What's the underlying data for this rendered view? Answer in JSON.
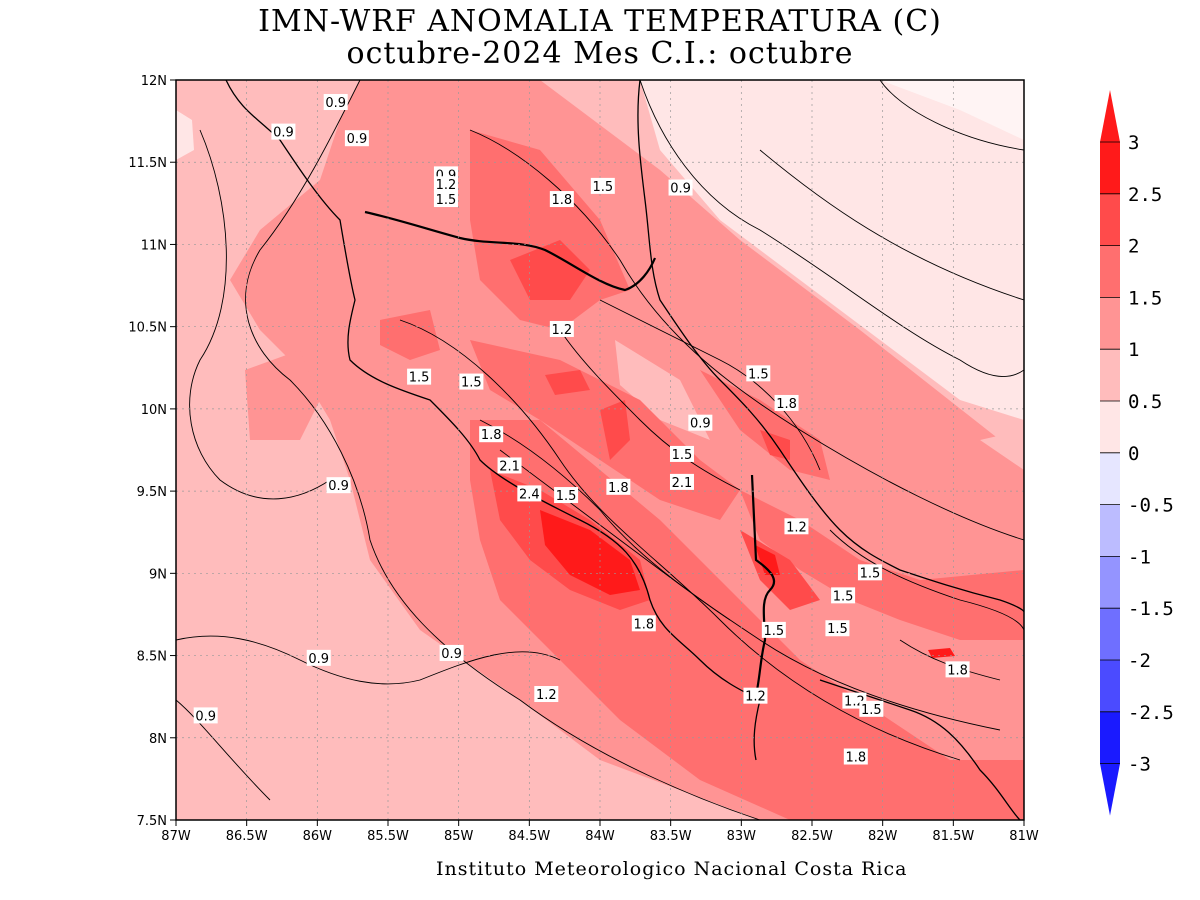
{
  "title": {
    "line1": "IMN-WRF  ANOMALIA TEMPERATURA (C)",
    "line2": "octubre-2024 Mes C.I.: octubre"
  },
  "credit": "Instituto Meteorologico Nacional Costa Rica",
  "axes": {
    "lon_ticks": [
      "87W",
      "86.5W",
      "86W",
      "85.5W",
      "85W",
      "84.5W",
      "84W",
      "83.5W",
      "83W",
      "82.5W",
      "82W",
      "81.5W",
      "81W"
    ],
    "lat_ticks": [
      "12N",
      "11.5N",
      "11N",
      "10.5N",
      "10N",
      "9.5N",
      "9N",
      "8.5N",
      "8N",
      "7.5N"
    ],
    "lon_range": [
      -87,
      -81
    ],
    "lat_range": [
      7.5,
      12
    ]
  },
  "colorbar": {
    "labels": [
      "3",
      "2.5",
      "2",
      "1.5",
      "1",
      "0.5",
      "0",
      "-0.5",
      "-1",
      "-1.5",
      "-2",
      "-2.5",
      "-3"
    ],
    "colors": [
      "#ff1a1a",
      "#ff4b4b",
      "#ff6f6f",
      "#ff9494",
      "#ffbcbc",
      "#ffe6e6",
      "#ffffff",
      "#e6e6ff",
      "#bcbcff",
      "#9494ff",
      "#6f6fff",
      "#4b4bff",
      "#1a1aff"
    ]
  },
  "contour_labels": [
    {
      "text": "0.9",
      "lon": -85.87,
      "lat": 11.86
    },
    {
      "text": "0.9",
      "lon": -86.24,
      "lat": 11.68
    },
    {
      "text": "0.9",
      "lon": -85.72,
      "lat": 11.64
    },
    {
      "text": "0.9",
      "lon": -85.09,
      "lat": 11.42
    },
    {
      "text": "1.2",
      "lon": -85.09,
      "lat": 11.36
    },
    {
      "text": "1.5",
      "lon": -85.09,
      "lat": 11.27
    },
    {
      "text": "1.8",
      "lon": -84.27,
      "lat": 11.27
    },
    {
      "text": "1.5",
      "lon": -83.98,
      "lat": 11.35
    },
    {
      "text": "0.9",
      "lon": -83.43,
      "lat": 11.34
    },
    {
      "text": "1.2",
      "lon": -84.27,
      "lat": 10.48
    },
    {
      "text": "1.5",
      "lon": -85.28,
      "lat": 10.19
    },
    {
      "text": "1.5",
      "lon": -84.91,
      "lat": 10.16
    },
    {
      "text": "1.5",
      "lon": -82.88,
      "lat": 10.21
    },
    {
      "text": "1.8",
      "lon": -82.68,
      "lat": 10.03
    },
    {
      "text": "0.9",
      "lon": -83.29,
      "lat": 9.91
    },
    {
      "text": "1.8",
      "lon": -84.77,
      "lat": 9.84
    },
    {
      "text": "1.5",
      "lon": -83.42,
      "lat": 9.72
    },
    {
      "text": "2.1",
      "lon": -84.64,
      "lat": 9.65
    },
    {
      "text": "2.1",
      "lon": -83.42,
      "lat": 9.55
    },
    {
      "text": "1.8",
      "lon": -83.87,
      "lat": 9.52
    },
    {
      "text": "2.4",
      "lon": -84.5,
      "lat": 9.48
    },
    {
      "text": "1.5",
      "lon": -84.24,
      "lat": 9.47
    },
    {
      "text": "0.9",
      "lon": -85.85,
      "lat": 9.53
    },
    {
      "text": "1.2",
      "lon": -82.61,
      "lat": 9.28
    },
    {
      "text": "1.5",
      "lon": -82.09,
      "lat": 9.0
    },
    {
      "text": "1.5",
      "lon": -82.28,
      "lat": 8.86
    },
    {
      "text": "1.8",
      "lon": -83.69,
      "lat": 8.69
    },
    {
      "text": "1.5",
      "lon": -82.77,
      "lat": 8.65
    },
    {
      "text": "1.5",
      "lon": -82.32,
      "lat": 8.66
    },
    {
      "text": "0.9",
      "lon": -85.05,
      "lat": 8.51
    },
    {
      "text": "0.9",
      "lon": -85.99,
      "lat": 8.48
    },
    {
      "text": "1.8",
      "lon": -81.47,
      "lat": 8.41
    },
    {
      "text": "1.2",
      "lon": -84.38,
      "lat": 8.26
    },
    {
      "text": "1.2",
      "lon": -82.9,
      "lat": 8.25
    },
    {
      "text": "1.2",
      "lon": -82.2,
      "lat": 8.22
    },
    {
      "text": "1.5",
      "lon": -82.08,
      "lat": 8.17
    },
    {
      "text": "0.9",
      "lon": -86.79,
      "lat": 8.13
    },
    {
      "text": "1.8",
      "lon": -82.19,
      "lat": 7.88
    }
  ]
}
